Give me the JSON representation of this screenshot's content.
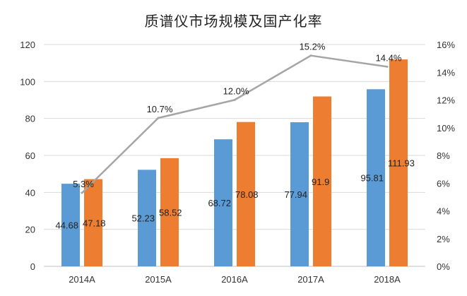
{
  "chart_data": {
    "type": "bar",
    "title": "质谱仪市场规模及国产化率",
    "categories": [
      "2014A",
      "2015A",
      "2016A",
      "2017A",
      "2018A"
    ],
    "series": [
      {
        "name": "",
        "kind": "bar",
        "axis": "left",
        "color": "#5b9bd5",
        "values": [
          44.68,
          52.23,
          68.72,
          77.94,
          95.81
        ],
        "labels": [
          "44.68",
          "52.23",
          "68.72",
          "77.94",
          "95.81"
        ]
      },
      {
        "name": "",
        "kind": "bar",
        "axis": "left",
        "color": "#ed7d31",
        "values": [
          47.18,
          58.52,
          78.08,
          91.9,
          111.93
        ],
        "labels": [
          "47.18",
          "58.52",
          "78.08",
          "91.9",
          "111.93"
        ]
      },
      {
        "name": "",
        "kind": "line",
        "axis": "right",
        "color": "#a5a5a5",
        "values": [
          5.3,
          10.7,
          12.0,
          15.2,
          14.4
        ],
        "labels": [
          "5.3%",
          "10.7%",
          "12.0%",
          "15.2%",
          "14.4%"
        ]
      }
    ],
    "y_left": {
      "min": 0,
      "max": 120,
      "ticks": [
        "0",
        "20",
        "40",
        "60",
        "80",
        "100",
        "120"
      ]
    },
    "y_right": {
      "min": 0,
      "max": 16,
      "ticks": [
        "0%",
        "2%",
        "4%",
        "6%",
        "8%",
        "10%",
        "12%",
        "14%",
        "16%"
      ]
    },
    "grid": true,
    "legend": "none"
  }
}
